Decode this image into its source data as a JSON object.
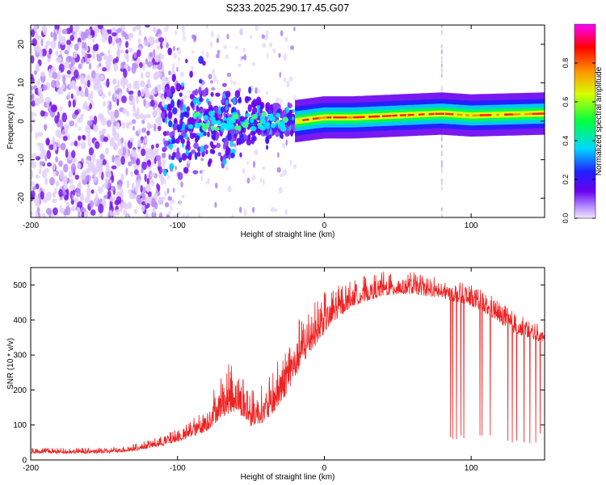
{
  "title": "S233.2025.290.17.45.G07",
  "chart_data": [
    {
      "type": "heatmap",
      "title": "S233.2025.290.17.45.G07",
      "xlabel": "Height of straight line (km)",
      "ylabel": "Frequency (Hz)",
      "xlim": [
        -200,
        150
      ],
      "ylim": [
        -25,
        25
      ],
      "xticks": [
        -200,
        -100,
        0,
        100
      ],
      "yticks": [
        -20,
        -10,
        0,
        10,
        20
      ],
      "colorbar": {
        "label": "Normalized spectral amplitude",
        "range": [
          0,
          1
        ],
        "ticks": [
          0.0,
          0.2,
          0.4,
          0.6,
          0.8
        ],
        "tick_labels": [
          "0.0",
          "0.2",
          "0.4",
          "0.6",
          "0.8"
        ],
        "colormap": [
          "#e8d6fc",
          "#6a00f0",
          "#2020ff",
          "#00e0ff",
          "#00ff40",
          "#f0ff00",
          "#ff8000",
          "#ff0000",
          "#ff00ff"
        ]
      },
      "features": {
        "noise_region": [
          -200,
          -110
        ],
        "scatter_region": [
          -110,
          -20
        ],
        "carrier_line_start_x": -20,
        "carrier_line_freq": [
          {
            "x": -20,
            "f": 0.0
          },
          {
            "x": -10,
            "f": 0.5
          },
          {
            "x": 0,
            "f": 1.0
          },
          {
            "x": 20,
            "f": 1.0
          },
          {
            "x": 50,
            "f": 1.5
          },
          {
            "x": 80,
            "f": 2.0
          },
          {
            "x": 100,
            "f": 1.5
          },
          {
            "x": 150,
            "f": 2.0
          }
        ],
        "vertical_streak_x": 80
      }
    },
    {
      "type": "line",
      "xlabel": "Height of straight line (km)",
      "ylabel": "SNR (10 * v/v)",
      "xlim": [
        -200,
        150
      ],
      "ylim": [
        0,
        550
      ],
      "xticks": [
        -200,
        -100,
        0,
        100
      ],
      "yticks": [
        0,
        100,
        200,
        300,
        400,
        500
      ],
      "color": "#ee2222",
      "envelope": [
        {
          "x": -200,
          "lo": 10,
          "hi": 35
        },
        {
          "x": -150,
          "lo": 10,
          "hi": 35
        },
        {
          "x": -130,
          "lo": 15,
          "hi": 45
        },
        {
          "x": -110,
          "lo": 25,
          "hi": 70
        },
        {
          "x": -95,
          "lo": 35,
          "hi": 100
        },
        {
          "x": -80,
          "lo": 40,
          "hi": 160
        },
        {
          "x": -70,
          "lo": 50,
          "hi": 260
        },
        {
          "x": -60,
          "lo": 60,
          "hi": 290
        },
        {
          "x": -50,
          "lo": 40,
          "hi": 200
        },
        {
          "x": -40,
          "lo": 50,
          "hi": 220
        },
        {
          "x": -30,
          "lo": 80,
          "hi": 300
        },
        {
          "x": -20,
          "lo": 150,
          "hi": 390
        },
        {
          "x": -10,
          "lo": 230,
          "hi": 440
        },
        {
          "x": 0,
          "lo": 300,
          "hi": 480
        },
        {
          "x": 10,
          "lo": 360,
          "hi": 500
        },
        {
          "x": 20,
          "lo": 400,
          "hi": 520
        },
        {
          "x": 40,
          "lo": 430,
          "hi": 540
        },
        {
          "x": 60,
          "lo": 440,
          "hi": 540
        },
        {
          "x": 80,
          "lo": 430,
          "hi": 520
        },
        {
          "x": 100,
          "lo": 410,
          "hi": 500
        },
        {
          "x": 115,
          "lo": 370,
          "hi": 470
        },
        {
          "x": 130,
          "lo": 330,
          "hi": 420
        },
        {
          "x": 150,
          "lo": 310,
          "hi": 380
        }
      ],
      "dropouts": [
        {
          "x": 86,
          "y": 65
        },
        {
          "x": 87.5,
          "y": 60
        },
        {
          "x": 90,
          "y": 60
        },
        {
          "x": 93,
          "y": 70
        },
        {
          "x": 95,
          "y": 62
        },
        {
          "x": 106,
          "y": 70
        },
        {
          "x": 107.5,
          "y": 70
        },
        {
          "x": 113,
          "y": 70
        },
        {
          "x": 125,
          "y": 55
        },
        {
          "x": 128,
          "y": 50
        },
        {
          "x": 131,
          "y": 55
        },
        {
          "x": 136,
          "y": 50
        },
        {
          "x": 140,
          "y": 48
        },
        {
          "x": 144,
          "y": 50
        },
        {
          "x": 147,
          "y": 75
        }
      ]
    }
  ]
}
